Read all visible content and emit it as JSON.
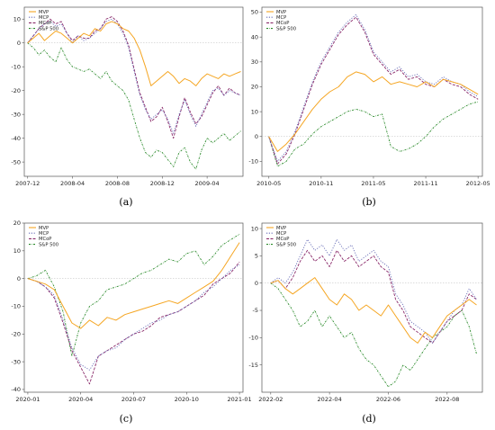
{
  "colors": {
    "MVP": "#f5a623",
    "MCP": "#6a6fb8",
    "MCoP": "#8a2a6a",
    "S&P 500": "#2a8a2a"
  },
  "chart_data": [
    {
      "type": "line",
      "caption": "(a)",
      "x_tick_labels": [
        "2007-12",
        "2008-04",
        "2008-08",
        "2008-12",
        "2009-04"
      ],
      "x_tick_pos": [
        0,
        4,
        8,
        12,
        16
      ],
      "x_range": [
        -0.3,
        19.2
      ],
      "ylim": [
        -56,
        15
      ],
      "y_ticks": [
        10,
        0,
        -10,
        -20,
        -30,
        -40,
        -50
      ],
      "x": [
        0,
        0.5,
        1,
        1.5,
        2,
        2.5,
        3,
        3.5,
        4,
        4.5,
        5,
        5.5,
        6,
        6.5,
        7,
        7.5,
        8,
        8.5,
        9,
        9.5,
        10,
        10.5,
        11,
        11.5,
        12,
        12.5,
        13,
        13.5,
        14,
        14.5,
        15,
        15.5,
        16,
        16.5,
        17,
        17.5,
        18,
        18.5,
        19
      ],
      "legend": [
        "MVP",
        "MCP",
        "MCoP",
        "S&P 500"
      ],
      "series": [
        {
          "name": "MVP",
          "values": [
            0,
            2,
            4,
            1,
            3,
            5,
            4,
            2,
            0,
            2,
            4,
            3,
            6,
            5,
            8,
            9,
            8,
            6,
            5,
            2,
            -3,
            -10,
            -18,
            -16,
            -14,
            -12,
            -14,
            -17,
            -15,
            -16,
            -18,
            -15,
            -13,
            -14,
            -15,
            -13,
            -14,
            -13,
            -12
          ]
        },
        {
          "name": "MCP",
          "values": [
            0,
            3,
            6,
            8,
            9,
            7,
            8,
            4,
            0,
            3,
            1,
            2,
            4,
            6,
            9,
            10,
            8,
            4,
            -2,
            -12,
            -22,
            -28,
            -32,
            -30,
            -28,
            -32,
            -38,
            -30,
            -24,
            -30,
            -35,
            -30,
            -25,
            -20,
            -19,
            -22,
            -20,
            -21,
            -22
          ]
        },
        {
          "name": "MCoP",
          "values": [
            0,
            3,
            6,
            8,
            10,
            8,
            9,
            4,
            1,
            3,
            2,
            2,
            5,
            6,
            10,
            11,
            9,
            5,
            -1,
            -11,
            -21,
            -27,
            -33,
            -31,
            -27,
            -33,
            -40,
            -31,
            -23,
            -29,
            -34,
            -31,
            -26,
            -21,
            -18,
            -22,
            -19,
            -21,
            -22
          ]
        },
        {
          "name": "S&P 500",
          "values": [
            0,
            -2,
            -5,
            -3,
            -6,
            -8,
            -2,
            -7,
            -10,
            -11,
            -12,
            -11,
            -13,
            -15,
            -12,
            -16,
            -18,
            -20,
            -24,
            -32,
            -40,
            -46,
            -48,
            -45,
            -46,
            -49,
            -52,
            -46,
            -44,
            -50,
            -53,
            -45,
            -40,
            -42,
            -40,
            -38,
            -41,
            -39,
            -37
          ]
        }
      ]
    },
    {
      "type": "line",
      "caption": "(b)",
      "x_tick_labels": [
        "2010-05",
        "2010-11",
        "2011-05",
        "2011-11",
        "2012-05"
      ],
      "x_tick_pos": [
        0,
        6,
        12,
        18,
        24
      ],
      "x_range": [
        -0.8,
        24.5
      ],
      "ylim": [
        -16,
        52
      ],
      "y_ticks": [
        50,
        40,
        30,
        20,
        10,
        0,
        -10
      ],
      "x": [
        0,
        1,
        2,
        3,
        4,
        5,
        6,
        7,
        8,
        9,
        10,
        11,
        12,
        13,
        14,
        15,
        16,
        17,
        18,
        19,
        20,
        21,
        22,
        23,
        24
      ],
      "legend": [
        "MVP",
        "MCP",
        "MCoP",
        "S&P 500"
      ],
      "series": [
        {
          "name": "MVP",
          "values": [
            0,
            -6,
            -3,
            1,
            6,
            11,
            15,
            18,
            20,
            24,
            26,
            25,
            22,
            24,
            21,
            22,
            21,
            20,
            22,
            20,
            23,
            22,
            21,
            19,
            17
          ]
        },
        {
          "name": "MCP",
          "values": [
            0,
            -10,
            -6,
            2,
            12,
            22,
            30,
            36,
            42,
            46,
            49,
            43,
            34,
            30,
            26,
            28,
            24,
            25,
            22,
            21,
            24,
            22,
            21,
            18,
            16
          ]
        },
        {
          "name": "MCoP",
          "values": [
            0,
            -11,
            -7,
            1,
            11,
            21,
            29,
            35,
            41,
            45,
            48,
            42,
            33,
            29,
            25,
            27,
            23,
            24,
            21,
            20,
            23,
            21,
            20,
            17,
            15
          ]
        },
        {
          "name": "S&P 500",
          "values": [
            0,
            -12,
            -10,
            -5,
            -3,
            1,
            4,
            6,
            8,
            10,
            11,
            10,
            8,
            9,
            -4,
            -6,
            -5,
            -3,
            0,
            4,
            7,
            9,
            11,
            13,
            14
          ]
        }
      ]
    },
    {
      "type": "line",
      "caption": "(c)",
      "x_tick_labels": [
        "2020-01",
        "2020-04",
        "2020-07",
        "2020-10",
        "2021-01"
      ],
      "x_tick_pos": [
        0,
        3,
        6,
        9,
        12
      ],
      "x_range": [
        -0.2,
        12.2
      ],
      "ylim": [
        -41,
        20
      ],
      "y_ticks": [
        20,
        10,
        0,
        -10,
        -20,
        -30,
        -40
      ],
      "x": [
        0,
        0.5,
        1,
        1.5,
        2,
        2.5,
        3,
        3.5,
        4,
        4.5,
        5,
        5.5,
        6,
        6.5,
        7,
        7.5,
        8,
        8.5,
        9,
        9.5,
        10,
        10.5,
        11,
        11.5,
        12
      ],
      "legend": [
        "MVP",
        "MCP",
        "MCoP",
        "S&P 500"
      ],
      "series": [
        {
          "name": "MVP",
          "values": [
            0,
            -1,
            -2,
            -4,
            -10,
            -16,
            -18,
            -15,
            -17,
            -14,
            -15,
            -13,
            -12,
            -11,
            -10,
            -9,
            -8,
            -9,
            -7,
            -5,
            -3,
            -1,
            3,
            8,
            13
          ]
        },
        {
          "name": "MCP",
          "values": [
            0,
            -1,
            -3,
            -6,
            -15,
            -25,
            -31,
            -33,
            -28,
            -26,
            -25,
            -22,
            -20,
            -18,
            -16,
            -15,
            -13,
            -12,
            -10,
            -8,
            -5,
            -3,
            0,
            3,
            5
          ]
        },
        {
          "name": "MCoP",
          "values": [
            0,
            -1,
            -3,
            -7,
            -16,
            -26,
            -32,
            -38,
            -28,
            -26,
            -24,
            -22,
            -20,
            -19,
            -17,
            -14,
            -13,
            -12,
            -10,
            -8,
            -6,
            -2,
            0,
            2,
            6
          ]
        },
        {
          "name": "S&P 500",
          "values": [
            0,
            1,
            3,
            -3,
            -12,
            -28,
            -16,
            -10,
            -8,
            -4,
            -3,
            -2,
            0,
            2,
            3,
            5,
            7,
            6,
            9,
            10,
            5,
            8,
            12,
            14,
            16
          ]
        }
      ]
    },
    {
      "type": "line",
      "caption": "(d)",
      "x_tick_labels": [
        "2022-02",
        "2022-04",
        "2022-06",
        "2022-08"
      ],
      "x_tick_pos": [
        0,
        2,
        4,
        6
      ],
      "x_range": [
        -0.3,
        7.2
      ],
      "ylim": [
        -20,
        11
      ],
      "y_ticks": [
        10,
        5,
        0,
        -5,
        -10,
        -15
      ],
      "x": [
        0,
        0.25,
        0.5,
        0.75,
        1,
        1.25,
        1.5,
        1.75,
        2,
        2.25,
        2.5,
        2.75,
        3,
        3.25,
        3.5,
        3.75,
        4,
        4.25,
        4.5,
        4.75,
        5,
        5.25,
        5.5,
        5.75,
        6,
        6.25,
        6.5,
        6.75,
        7
      ],
      "legend": [
        "MVP",
        "MCP",
        "MCoP",
        "S&P 500"
      ],
      "series": [
        {
          "name": "MVP",
          "values": [
            0,
            0.5,
            -1,
            -2,
            -1,
            0,
            1,
            -1,
            -3,
            -4,
            -2,
            -3,
            -5,
            -4,
            -5,
            -6,
            -4,
            -6,
            -8,
            -10,
            -11,
            -9,
            -10,
            -8,
            -6,
            -5,
            -4,
            -3,
            -4
          ]
        },
        {
          "name": "MCP",
          "values": [
            0,
            1,
            0,
            2,
            5,
            8,
            6,
            7,
            5,
            8,
            6,
            7,
            4,
            5,
            6,
            4,
            3,
            -2,
            -4,
            -7,
            -8,
            -9,
            -11,
            -9,
            -7,
            -5,
            -4,
            -1,
            -3
          ]
        },
        {
          "name": "MCoP",
          "values": [
            0,
            0.5,
            -1,
            1,
            4,
            6,
            4,
            5,
            3,
            6,
            4,
            5,
            3,
            4,
            5,
            3,
            2,
            -3,
            -5,
            -8,
            -9,
            -10,
            -11,
            -9,
            -7,
            -6,
            -5,
            -2,
            -3
          ]
        },
        {
          "name": "S&P 500",
          "values": [
            0,
            -1,
            -3,
            -5,
            -8,
            -7,
            -5,
            -8,
            -6,
            -8,
            -10,
            -9,
            -12,
            -14,
            -15,
            -17,
            -19,
            -18,
            -15,
            -16,
            -14,
            -12,
            -10,
            -9,
            -8,
            -6,
            -5,
            -8,
            -13
          ]
        }
      ]
    }
  ]
}
